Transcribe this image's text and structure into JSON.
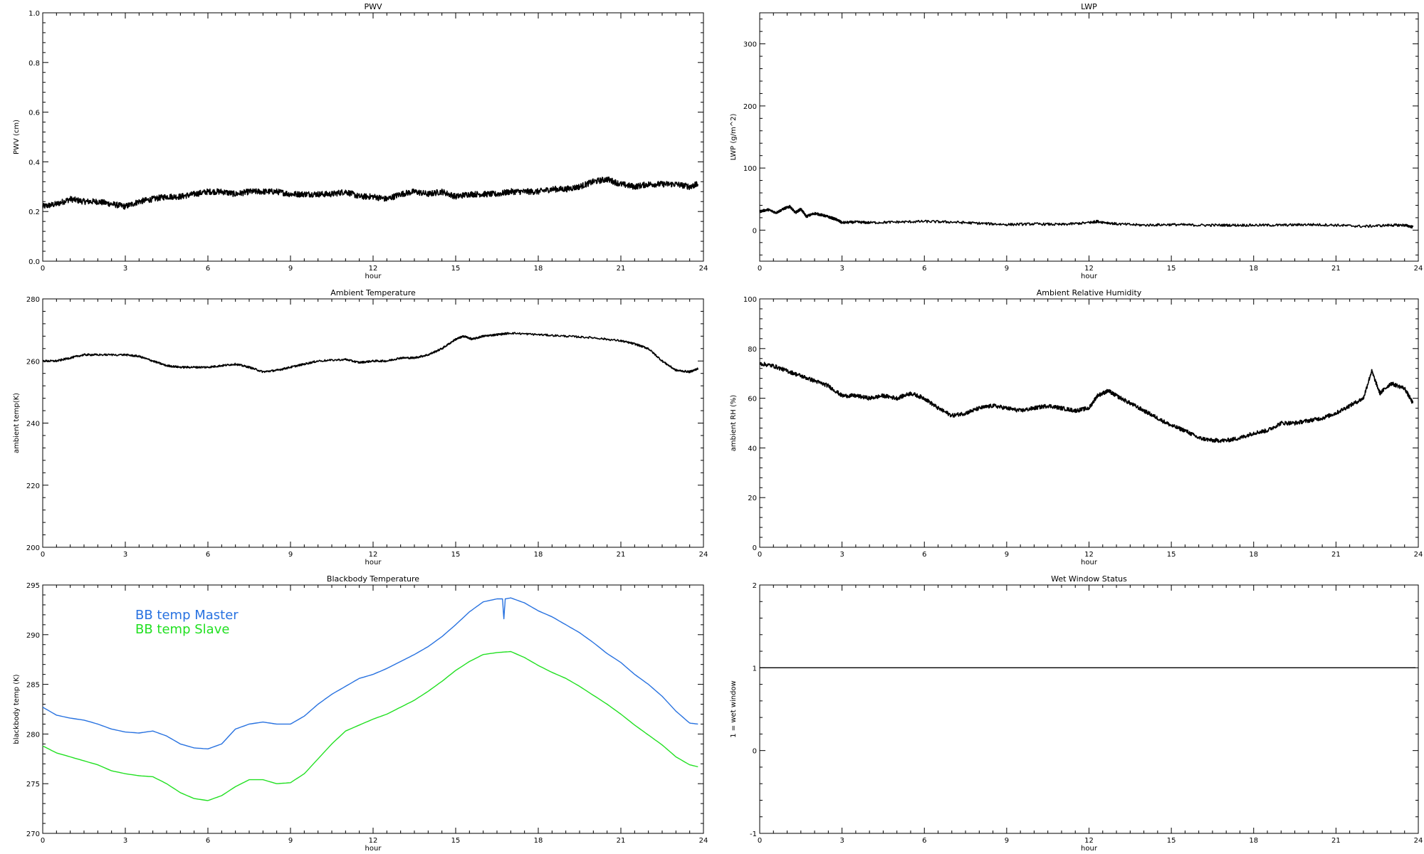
{
  "chart_data": [
    {
      "type": "line",
      "title": "PWV",
      "xlabel": "hour",
      "ylabel": "PWV (cm)",
      "xlim": [
        0,
        24
      ],
      "ylim": [
        0.0,
        1.0
      ],
      "xticks": [
        "0",
        "3",
        "6",
        "9",
        "12",
        "15",
        "18",
        "21",
        "24"
      ],
      "yticks": [
        "0.0",
        "0.2",
        "0.4",
        "0.6",
        "0.8",
        "1.0"
      ],
      "ytick_values": [
        0.0,
        0.2,
        0.4,
        0.6,
        0.8,
        1.0
      ],
      "noise": 0.012,
      "series": [
        {
          "color": "#000000",
          "x": [
            0,
            0.5,
            1,
            1.5,
            2,
            2.5,
            3,
            3.5,
            4,
            4.5,
            5,
            5.5,
            6,
            6.5,
            7,
            7.5,
            8,
            8.5,
            9,
            9.5,
            10,
            10.5,
            11,
            11.5,
            12,
            12.5,
            13,
            13.5,
            14,
            14.5,
            15,
            15.5,
            16,
            16.5,
            17,
            17.5,
            18,
            18.5,
            19,
            19.5,
            20,
            20.5,
            21,
            21.5,
            22,
            22.5,
            23,
            23.5,
            23.8
          ],
          "values": [
            0.22,
            0.23,
            0.25,
            0.24,
            0.24,
            0.23,
            0.22,
            0.24,
            0.25,
            0.26,
            0.26,
            0.27,
            0.28,
            0.28,
            0.27,
            0.28,
            0.28,
            0.28,
            0.27,
            0.27,
            0.27,
            0.27,
            0.28,
            0.26,
            0.26,
            0.25,
            0.27,
            0.28,
            0.27,
            0.28,
            0.26,
            0.27,
            0.27,
            0.27,
            0.28,
            0.28,
            0.28,
            0.29,
            0.29,
            0.3,
            0.32,
            0.33,
            0.31,
            0.3,
            0.31,
            0.31,
            0.31,
            0.3,
            0.31
          ]
        }
      ]
    },
    {
      "type": "line",
      "title": "LWP",
      "xlabel": "hour",
      "ylabel": "LWP (g/m^2)",
      "xlim": [
        0,
        24
      ],
      "ylim": [
        -50,
        350
      ],
      "xticks": [
        "0",
        "3",
        "6",
        "9",
        "12",
        "15",
        "18",
        "21",
        "24"
      ],
      "yticks": [
        "0",
        "100",
        "200",
        "300"
      ],
      "ytick_values": [
        0,
        100,
        200,
        300
      ],
      "noise": 2,
      "series": [
        {
          "color": "#000000",
          "x": [
            0,
            0.3,
            0.6,
            0.9,
            1.1,
            1.3,
            1.5,
            1.7,
            2,
            2.3,
            2.6,
            2.8,
            3,
            3.5,
            4,
            5,
            6,
            7,
            8,
            9,
            10,
            11,
            12,
            12.3,
            13,
            14,
            15,
            16,
            17,
            18,
            19,
            20,
            21,
            22,
            23,
            23.5,
            23.8
          ],
          "values": [
            30,
            33,
            28,
            35,
            38,
            28,
            34,
            22,
            27,
            24,
            20,
            17,
            12,
            13,
            12,
            13,
            14,
            13,
            11,
            9,
            10,
            9,
            12,
            14,
            10,
            8,
            9,
            8,
            8,
            8,
            8,
            9,
            8,
            6,
            8,
            8,
            5
          ]
        }
      ]
    },
    {
      "type": "line",
      "title": "Ambient Temperature",
      "xlabel": "hour",
      "ylabel": "ambient temp(K)",
      "xlim": [
        0,
        24
      ],
      "ylim": [
        200,
        280
      ],
      "xticks": [
        "0",
        "3",
        "6",
        "9",
        "12",
        "15",
        "18",
        "21",
        "24"
      ],
      "yticks": [
        "200",
        "220",
        "240",
        "260",
        "280"
      ],
      "ytick_values": [
        200,
        220,
        240,
        260,
        280
      ],
      "noise": 0.3,
      "series": [
        {
          "color": "#000000",
          "x": [
            0,
            0.5,
            1,
            1.5,
            2,
            3,
            3.5,
            4,
            4.5,
            5,
            5.5,
            6,
            6.5,
            7,
            7.5,
            8,
            8.5,
            9,
            9.5,
            10,
            11,
            11.5,
            12,
            12.5,
            13,
            13.5,
            14,
            14.5,
            15,
            15.3,
            15.6,
            16,
            16.5,
            17,
            18,
            19,
            20,
            21,
            21.5,
            22,
            22.5,
            23,
            23.5,
            23.8
          ],
          "values": [
            260,
            260,
            261,
            262,
            262,
            262,
            261.5,
            260,
            258.5,
            258,
            258,
            258,
            258.5,
            259,
            258,
            256.5,
            257,
            258,
            259,
            260,
            260.5,
            259.5,
            260,
            260,
            261,
            261,
            262,
            264,
            267,
            268,
            267,
            268,
            268.5,
            269,
            268.5,
            268,
            267.5,
            266.5,
            265.5,
            264,
            260,
            257,
            256.5,
            257.5
          ]
        }
      ]
    },
    {
      "type": "line",
      "title": "Ambient Relative Humidity",
      "xlabel": "hour",
      "ylabel": "ambient RH (%)",
      "xlim": [
        0,
        24
      ],
      "ylim": [
        0,
        100
      ],
      "xticks": [
        "0",
        "3",
        "6",
        "9",
        "12",
        "15",
        "18",
        "21",
        "24"
      ],
      "yticks": [
        "0",
        "20",
        "40",
        "60",
        "80",
        "100"
      ],
      "ytick_values": [
        0,
        20,
        40,
        60,
        80,
        100
      ],
      "noise": 0.8,
      "series": [
        {
          "color": "#000000",
          "x": [
            0,
            0.5,
            1,
            1.5,
            2,
            2.5,
            3,
            3.5,
            4,
            4.5,
            5,
            5.5,
            6,
            6.5,
            7,
            7.5,
            8,
            8.5,
            9,
            9.5,
            10,
            10.5,
            11,
            11.5,
            12,
            12.3,
            12.7,
            13,
            13.5,
            14,
            14.5,
            15,
            15.5,
            16,
            16.5,
            17,
            17.5,
            18,
            18.5,
            19,
            19.5,
            20,
            20.5,
            21,
            21.5,
            22,
            22.3,
            22.6,
            23,
            23.5,
            23.8
          ],
          "values": [
            74,
            73,
            71,
            69,
            67,
            65,
            61,
            61,
            60,
            61,
            60,
            62,
            60,
            56,
            53,
            54,
            56,
            57,
            56,
            55,
            56,
            57,
            56,
            55,
            56,
            61,
            63,
            61,
            58,
            55,
            52,
            49,
            47,
            44,
            43,
            43,
            44,
            46,
            47,
            50,
            50,
            51,
            52,
            54,
            57,
            60,
            71,
            62,
            66,
            64,
            58
          ]
        }
      ]
    },
    {
      "type": "line",
      "title": "Blackbody Temperature",
      "xlabel": "hour",
      "ylabel": "blackbody temp (K)",
      "xlim": [
        0,
        24
      ],
      "ylim": [
        270,
        295
      ],
      "xticks": [
        "0",
        "3",
        "6",
        "9",
        "12",
        "15",
        "18",
        "21",
        "24"
      ],
      "yticks": [
        "270",
        "275",
        "280",
        "285",
        "290",
        "295"
      ],
      "ytick_values": [
        270,
        275,
        280,
        285,
        290,
        295
      ],
      "noise": 0,
      "legend": "top-left",
      "series": [
        {
          "name": "BB temp Master",
          "color": "#2872e0",
          "x": [
            0,
            0.5,
            1,
            1.5,
            2,
            2.5,
            3,
            3.5,
            4,
            4.5,
            5,
            5.5,
            6,
            6.5,
            7,
            7.5,
            8,
            8.5,
            9,
            9.5,
            10,
            10.5,
            11,
            11.5,
            12,
            12.5,
            13,
            13.5,
            14,
            14.5,
            15,
            15.5,
            16,
            16.5,
            16.7,
            16.75,
            16.8,
            17,
            17.5,
            18,
            18.5,
            19,
            19.5,
            20,
            20.5,
            21,
            21.5,
            22,
            22.5,
            23,
            23.5,
            23.8
          ],
          "values": [
            282.7,
            281.9,
            281.6,
            281.4,
            281.0,
            280.5,
            280.2,
            280.1,
            280.3,
            279.8,
            279.0,
            278.6,
            278.5,
            279.0,
            280.5,
            281.0,
            281.2,
            281.0,
            281.0,
            281.8,
            283.0,
            284.0,
            284.8,
            285.6,
            286.0,
            286.6,
            287.3,
            288.0,
            288.8,
            289.8,
            291.0,
            292.3,
            293.3,
            293.6,
            293.6,
            291.6,
            293.6,
            293.7,
            293.2,
            292.4,
            291.8,
            291.0,
            290.2,
            289.2,
            288.1,
            287.2,
            286.0,
            285.0,
            283.8,
            282.3,
            281.1,
            281.0
          ]
        },
        {
          "name": "BB temp Slave",
          "color": "#22e022",
          "x": [
            0,
            0.5,
            1,
            1.5,
            2,
            2.5,
            3,
            3.5,
            4,
            4.5,
            5,
            5.5,
            6,
            6.5,
            7,
            7.5,
            8,
            8.5,
            9,
            9.5,
            10,
            10.5,
            11,
            11.5,
            12,
            12.5,
            13,
            13.5,
            14,
            14.5,
            15,
            15.5,
            16,
            16.5,
            17,
            17.5,
            18,
            18.5,
            19,
            19.5,
            20,
            20.5,
            21,
            21.5,
            22,
            22.5,
            23,
            23.5,
            23.8
          ],
          "values": [
            278.8,
            278.1,
            277.7,
            277.3,
            276.9,
            276.3,
            276.0,
            275.8,
            275.7,
            275.0,
            274.1,
            273.5,
            273.3,
            273.8,
            274.7,
            275.4,
            275.4,
            275.0,
            275.1,
            276.0,
            277.5,
            279.0,
            280.3,
            280.9,
            281.5,
            282.0,
            282.7,
            283.4,
            284.3,
            285.3,
            286.4,
            287.3,
            288.0,
            288.2,
            288.3,
            287.7,
            286.9,
            286.2,
            285.6,
            284.8,
            283.9,
            283.0,
            282.0,
            280.9,
            279.9,
            278.9,
            277.7,
            276.9,
            276.7
          ]
        }
      ]
    },
    {
      "type": "line",
      "title": "Wet Window Status",
      "xlabel": "hour",
      "ylabel": "1 = wet window",
      "xlim": [
        0,
        24
      ],
      "ylim": [
        -1,
        2
      ],
      "xticks": [
        "0",
        "3",
        "6",
        "9",
        "12",
        "15",
        "18",
        "21",
        "24"
      ],
      "yticks": [
        "-1",
        "0",
        "1",
        "2"
      ],
      "ytick_values": [
        -1,
        0,
        1,
        2
      ],
      "noise": 0,
      "series": [
        {
          "color": "#000000",
          "x": [
            0,
            23.9
          ],
          "values": [
            1,
            1
          ]
        }
      ]
    }
  ]
}
